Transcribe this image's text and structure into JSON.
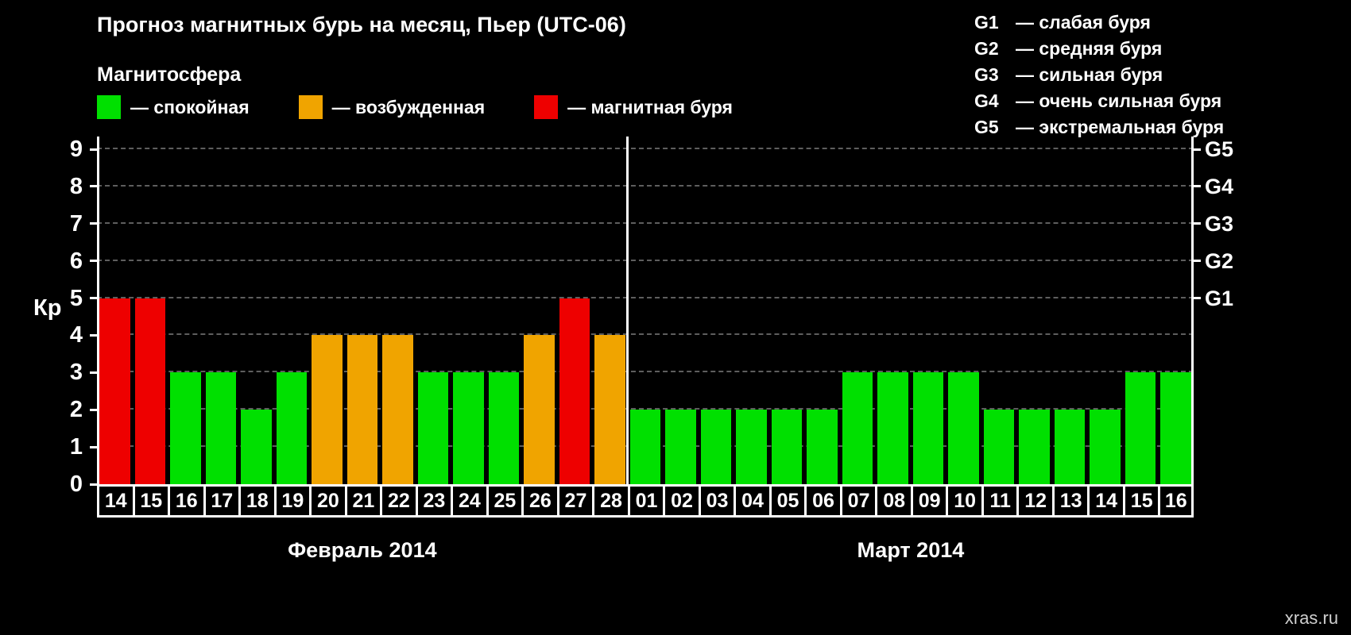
{
  "page": {
    "background": "#000000",
    "watermark": "xras.ru"
  },
  "header": {
    "title": "Прогноз магнитных бурь на месяц, Пьер (UTC-06)",
    "subtitle": "Магнитосфера"
  },
  "legend": {
    "items": [
      {
        "name": "quiet",
        "label": "— спокойная",
        "color": "#00e000"
      },
      {
        "name": "active",
        "label": "— возбужденная",
        "color": "#f0a400"
      },
      {
        "name": "storm",
        "label": "— магнитная буря",
        "color": "#ee0000"
      }
    ]
  },
  "g_scale_legend": [
    {
      "code": "G1",
      "desc": "— слабая буря"
    },
    {
      "code": "G2",
      "desc": "— средняя буря"
    },
    {
      "code": "G3",
      "desc": "— сильная буря"
    },
    {
      "code": "G4",
      "desc": "— очень сильная буря"
    },
    {
      "code": "G5",
      "desc": "— экстремальная буря"
    }
  ],
  "chart_data": {
    "type": "bar",
    "title": "Прогноз магнитных бурь на месяц, Пьер (UTC-06)",
    "ylabel": "Кр",
    "ylim": [
      0,
      9
    ],
    "yticks": [
      0,
      1,
      2,
      3,
      4,
      5,
      6,
      7,
      8,
      9
    ],
    "right_axis_ticks": [
      {
        "label": "G5",
        "value": 9
      },
      {
        "label": "G4",
        "value": 8
      },
      {
        "label": "G3",
        "value": 7
      },
      {
        "label": "G2",
        "value": 6
      },
      {
        "label": "G1",
        "value": 5
      }
    ],
    "color_rules": {
      "storm_min_kp": 5,
      "active_min_kp": 4
    },
    "grid": {
      "horizontal_dashed": true
    },
    "legend_position": "top-left",
    "months": [
      {
        "label": "Февраль 2014",
        "days": [
          "14",
          "15",
          "16",
          "17",
          "18",
          "19",
          "20",
          "21",
          "22",
          "23",
          "24",
          "25",
          "26",
          "27",
          "28"
        ],
        "values": [
          5,
          5,
          3,
          3,
          2,
          3,
          4,
          4,
          4,
          3,
          3,
          3,
          4,
          5,
          4
        ]
      },
      {
        "label": "Март 2014",
        "days": [
          "01",
          "02",
          "03",
          "04",
          "05",
          "06",
          "07",
          "08",
          "09",
          "10",
          "11",
          "12",
          "13",
          "14",
          "15",
          "16"
        ],
        "values": [
          2,
          2,
          2,
          2,
          2,
          2,
          3,
          3,
          3,
          3,
          2,
          2,
          2,
          2,
          3,
          3
        ]
      }
    ]
  }
}
